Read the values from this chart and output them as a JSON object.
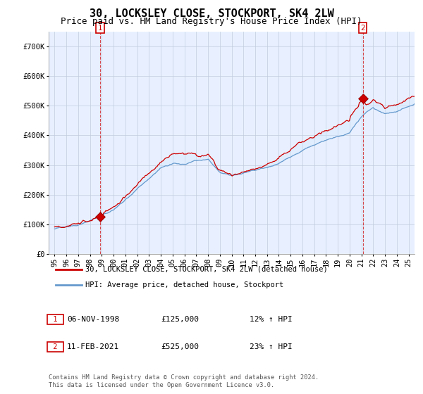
{
  "title": "30, LOCKSLEY CLOSE, STOCKPORT, SK4 2LW",
  "subtitle": "Price paid vs. HM Land Registry's House Price Index (HPI)",
  "ylim": [
    0,
    750000
  ],
  "yticks": [
    0,
    100000,
    200000,
    300000,
    400000,
    500000,
    600000,
    700000
  ],
  "ytick_labels": [
    "£0",
    "£100K",
    "£200K",
    "£300K",
    "£400K",
    "£500K",
    "£600K",
    "£700K"
  ],
  "xlim_start": 1994.5,
  "xlim_end": 2025.5,
  "xticks": [
    1995,
    1996,
    1997,
    1998,
    1999,
    2000,
    2001,
    2002,
    2003,
    2004,
    2005,
    2006,
    2007,
    2008,
    2009,
    2010,
    2011,
    2012,
    2013,
    2014,
    2015,
    2016,
    2017,
    2018,
    2019,
    2020,
    2021,
    2022,
    2023,
    2024,
    2025
  ],
  "house_color": "#cc0000",
  "hpi_color": "#6699cc",
  "hpi_fill_color": "#d0e8ff",
  "plot_bg_color": "#e8f0ff",
  "marker1_date": 1998.85,
  "marker1_price": 125000,
  "marker1_label": "1",
  "marker2_date": 2021.11,
  "marker2_price": 525000,
  "marker2_label": "2",
  "legend_house": "30, LOCKSLEY CLOSE, STOCKPORT, SK4 2LW (detached house)",
  "legend_hpi": "HPI: Average price, detached house, Stockport",
  "ann1_date": "06-NOV-1998",
  "ann1_price": "£125,000",
  "ann1_hpi": "12% ↑ HPI",
  "ann2_date": "11-FEB-2021",
  "ann2_price": "£525,000",
  "ann2_hpi": "23% ↑ HPI",
  "footer": "Contains HM Land Registry data © Crown copyright and database right 2024.\nThis data is licensed under the Open Government Licence v3.0.",
  "background_color": "#ffffff",
  "grid_color": "#c0ccdd",
  "title_fontsize": 11,
  "subtitle_fontsize": 9,
  "axis_fontsize": 7.5
}
